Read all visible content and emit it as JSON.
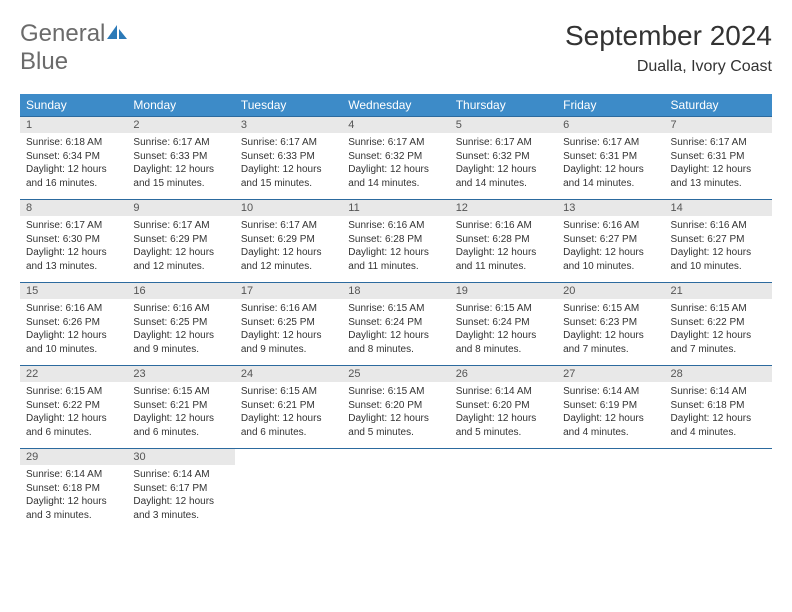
{
  "logo": {
    "text_part1": "General",
    "text_part2": "Blue"
  },
  "colors": {
    "header_bg": "#3d8bc8",
    "border": "#2c6a9e",
    "logo_gray": "#6b6b6b",
    "logo_blue": "#2c7ab8",
    "daynum_bg": "#e8e8e8"
  },
  "title": "September 2024",
  "location": "Dualla, Ivory Coast",
  "day_names": [
    "Sunday",
    "Monday",
    "Tuesday",
    "Wednesday",
    "Thursday",
    "Friday",
    "Saturday"
  ],
  "days": [
    {
      "n": "1",
      "sunrise": "6:18 AM",
      "sunset": "6:34 PM",
      "daylight": "12 hours and 16 minutes."
    },
    {
      "n": "2",
      "sunrise": "6:17 AM",
      "sunset": "6:33 PM",
      "daylight": "12 hours and 15 minutes."
    },
    {
      "n": "3",
      "sunrise": "6:17 AM",
      "sunset": "6:33 PM",
      "daylight": "12 hours and 15 minutes."
    },
    {
      "n": "4",
      "sunrise": "6:17 AM",
      "sunset": "6:32 PM",
      "daylight": "12 hours and 14 minutes."
    },
    {
      "n": "5",
      "sunrise": "6:17 AM",
      "sunset": "6:32 PM",
      "daylight": "12 hours and 14 minutes."
    },
    {
      "n": "6",
      "sunrise": "6:17 AM",
      "sunset": "6:31 PM",
      "daylight": "12 hours and 14 minutes."
    },
    {
      "n": "7",
      "sunrise": "6:17 AM",
      "sunset": "6:31 PM",
      "daylight": "12 hours and 13 minutes."
    },
    {
      "n": "8",
      "sunrise": "6:17 AM",
      "sunset": "6:30 PM",
      "daylight": "12 hours and 13 minutes."
    },
    {
      "n": "9",
      "sunrise": "6:17 AM",
      "sunset": "6:29 PM",
      "daylight": "12 hours and 12 minutes."
    },
    {
      "n": "10",
      "sunrise": "6:17 AM",
      "sunset": "6:29 PM",
      "daylight": "12 hours and 12 minutes."
    },
    {
      "n": "11",
      "sunrise": "6:16 AM",
      "sunset": "6:28 PM",
      "daylight": "12 hours and 11 minutes."
    },
    {
      "n": "12",
      "sunrise": "6:16 AM",
      "sunset": "6:28 PM",
      "daylight": "12 hours and 11 minutes."
    },
    {
      "n": "13",
      "sunrise": "6:16 AM",
      "sunset": "6:27 PM",
      "daylight": "12 hours and 10 minutes."
    },
    {
      "n": "14",
      "sunrise": "6:16 AM",
      "sunset": "6:27 PM",
      "daylight": "12 hours and 10 minutes."
    },
    {
      "n": "15",
      "sunrise": "6:16 AM",
      "sunset": "6:26 PM",
      "daylight": "12 hours and 10 minutes."
    },
    {
      "n": "16",
      "sunrise": "6:16 AM",
      "sunset": "6:25 PM",
      "daylight": "12 hours and 9 minutes."
    },
    {
      "n": "17",
      "sunrise": "6:16 AM",
      "sunset": "6:25 PM",
      "daylight": "12 hours and 9 minutes."
    },
    {
      "n": "18",
      "sunrise": "6:15 AM",
      "sunset": "6:24 PM",
      "daylight": "12 hours and 8 minutes."
    },
    {
      "n": "19",
      "sunrise": "6:15 AM",
      "sunset": "6:24 PM",
      "daylight": "12 hours and 8 minutes."
    },
    {
      "n": "20",
      "sunrise": "6:15 AM",
      "sunset": "6:23 PM",
      "daylight": "12 hours and 7 minutes."
    },
    {
      "n": "21",
      "sunrise": "6:15 AM",
      "sunset": "6:22 PM",
      "daylight": "12 hours and 7 minutes."
    },
    {
      "n": "22",
      "sunrise": "6:15 AM",
      "sunset": "6:22 PM",
      "daylight": "12 hours and 6 minutes."
    },
    {
      "n": "23",
      "sunrise": "6:15 AM",
      "sunset": "6:21 PM",
      "daylight": "12 hours and 6 minutes."
    },
    {
      "n": "24",
      "sunrise": "6:15 AM",
      "sunset": "6:21 PM",
      "daylight": "12 hours and 6 minutes."
    },
    {
      "n": "25",
      "sunrise": "6:15 AM",
      "sunset": "6:20 PM",
      "daylight": "12 hours and 5 minutes."
    },
    {
      "n": "26",
      "sunrise": "6:14 AM",
      "sunset": "6:20 PM",
      "daylight": "12 hours and 5 minutes."
    },
    {
      "n": "27",
      "sunrise": "6:14 AM",
      "sunset": "6:19 PM",
      "daylight": "12 hours and 4 minutes."
    },
    {
      "n": "28",
      "sunrise": "6:14 AM",
      "sunset": "6:18 PM",
      "daylight": "12 hours and 4 minutes."
    },
    {
      "n": "29",
      "sunrise": "6:14 AM",
      "sunset": "6:18 PM",
      "daylight": "12 hours and 3 minutes."
    },
    {
      "n": "30",
      "sunrise": "6:14 AM",
      "sunset": "6:17 PM",
      "daylight": "12 hours and 3 minutes."
    }
  ],
  "labels": {
    "sunrise": "Sunrise: ",
    "sunset": "Sunset: ",
    "daylight": "Daylight: "
  }
}
